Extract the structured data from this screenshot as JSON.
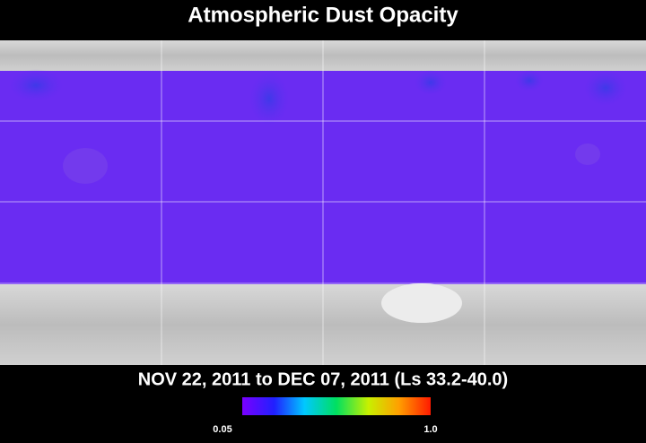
{
  "title": "Atmospheric Dust Opacity",
  "subtitle": "NOV 22, 2011 to DEC 07, 2011 (Ls 33.2-40.0)",
  "colorbar": {
    "range": [
      0.05,
      1
    ],
    "ticks": [
      0.05,
      {
        "value": 1,
        "label": "1.0"
      }
    ]
  }
}
